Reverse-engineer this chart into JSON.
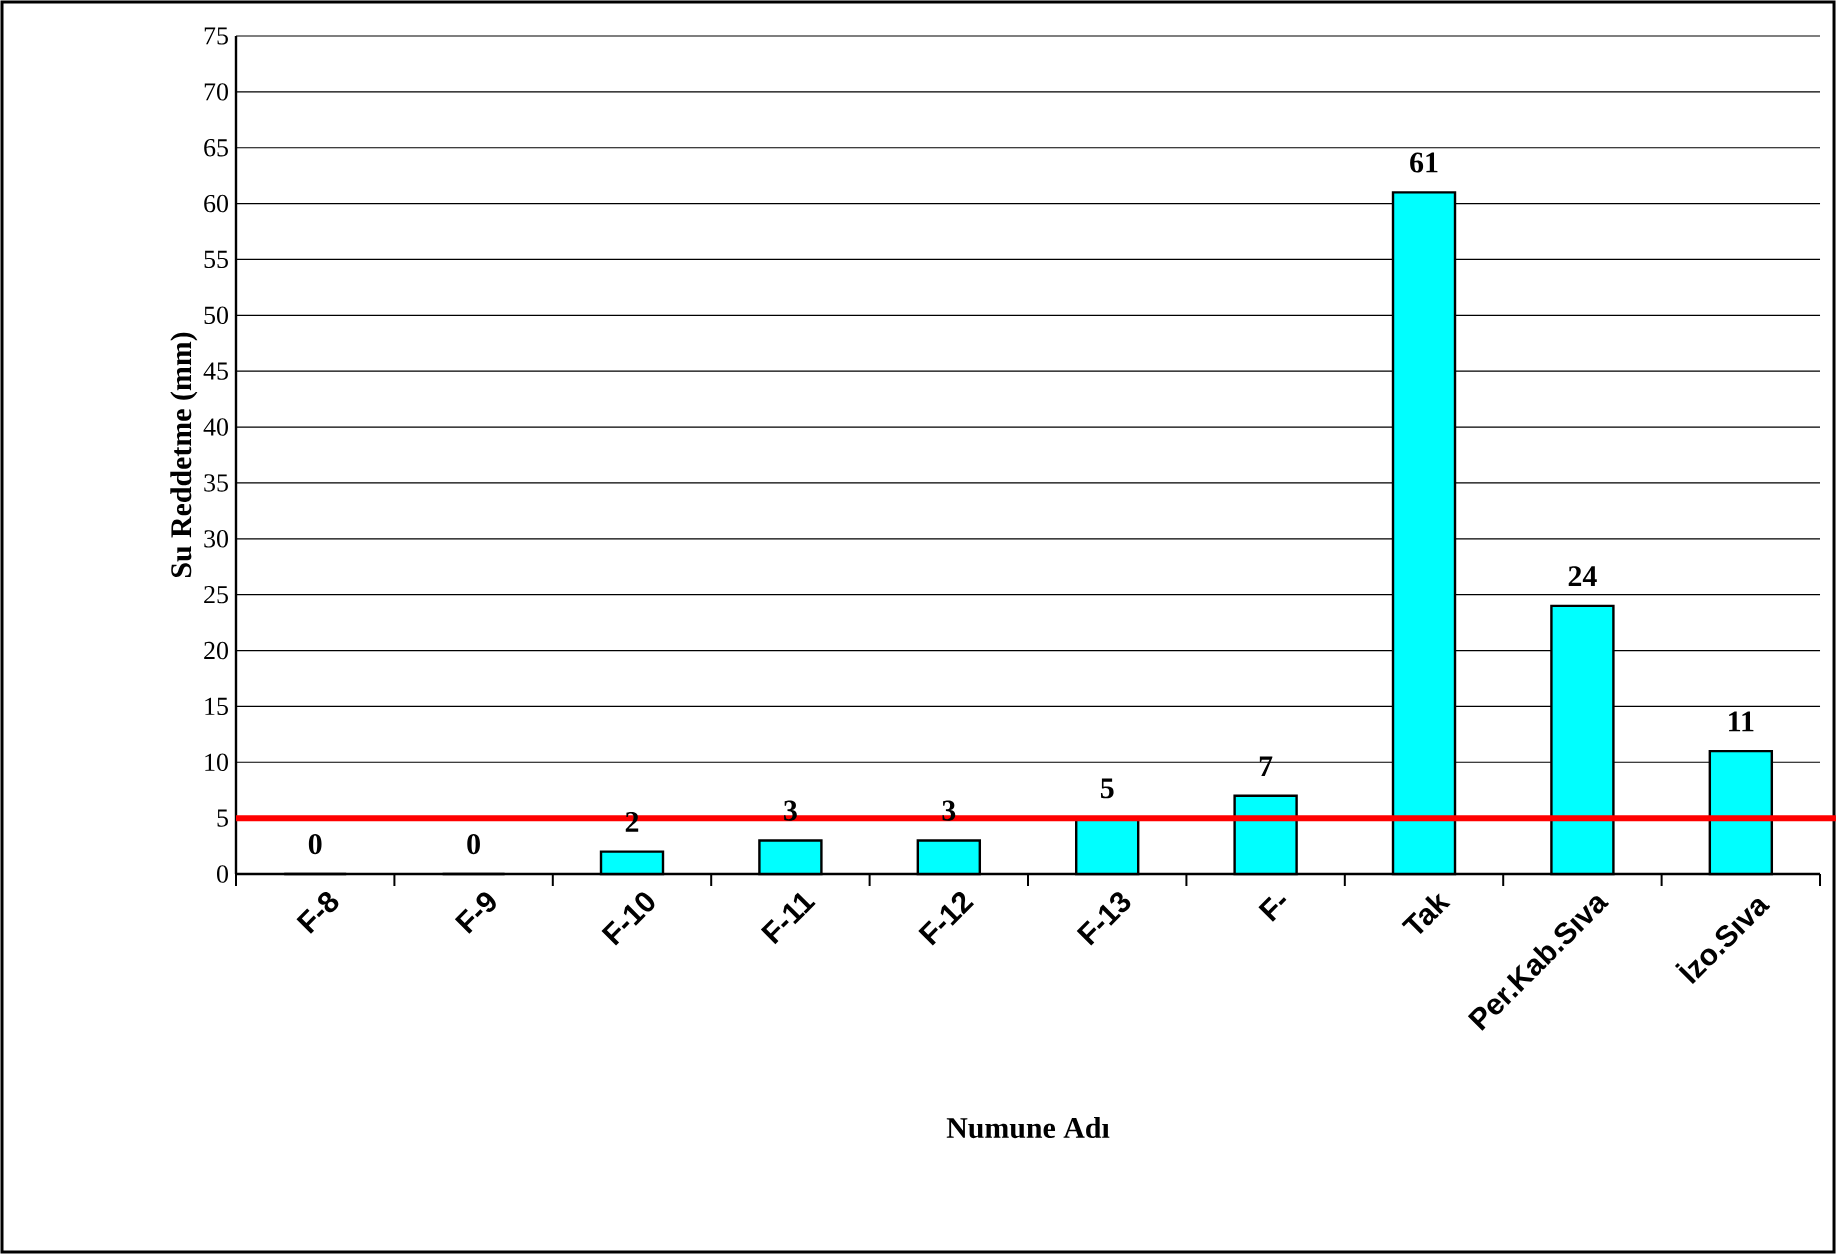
{
  "chart_data": {
    "type": "bar",
    "xlabel": "Numune Adı",
    "ylabel": "Su Reddetme (mm)",
    "categories": [
      "F-8",
      "F-9",
      "F-10",
      "F-11",
      "F-12",
      "F-13",
      "F-",
      "Tak",
      "Per.Kab.Sıva",
      "İzo.Sıva"
    ],
    "values": [
      0,
      0,
      2,
      3,
      3,
      5,
      7,
      61,
      24,
      11
    ],
    "color": "#00ffff",
    "ylim": [
      0,
      75
    ],
    "yticks": [
      0,
      5,
      10,
      15,
      20,
      25,
      30,
      35,
      40,
      45,
      50,
      55,
      60,
      65,
      70,
      75
    ],
    "grid": "y",
    "data_labels": true,
    "ref_lines": [
      {
        "axis": "y",
        "value": 5,
        "color": "#ff0000"
      }
    ]
  }
}
